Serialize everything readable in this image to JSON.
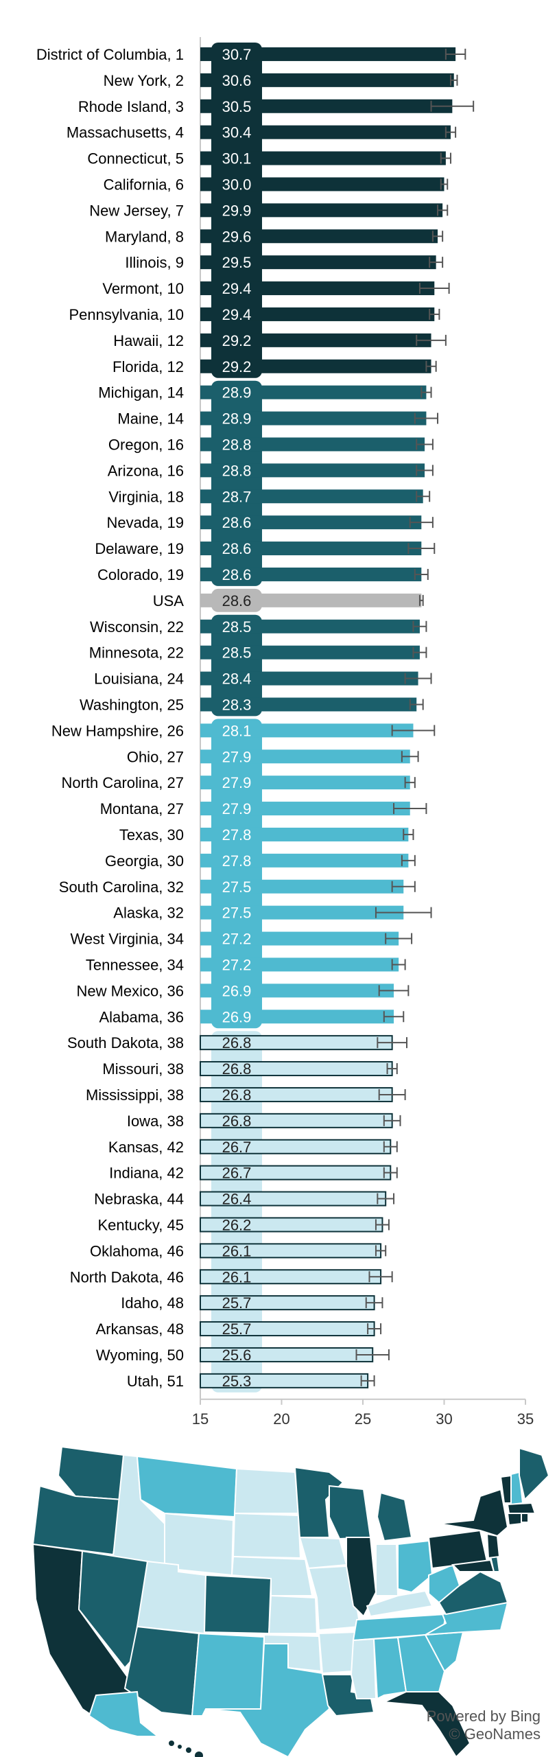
{
  "chart_data": {
    "type": "bar",
    "orientation": "horizontal",
    "title": "",
    "xlabel": "",
    "ylabel": "",
    "xlim": [
      15,
      35
    ],
    "x_ticks": [
      15,
      20,
      25,
      30,
      35
    ],
    "x_tick_labels": [
      "15",
      "20",
      "25",
      "30",
      "35"
    ],
    "categories": [
      "District of Columbia, 1",
      "New York, 2",
      "Rhode Island, 3",
      "Massachusetts, 4",
      "Connecticut, 5",
      "California, 6",
      "New Jersey, 7",
      "Maryland, 8",
      "Illinois, 9",
      "Vermont, 10",
      "Pennsylvania, 10",
      "Hawaii, 12",
      "Florida, 12",
      "Michigan, 14",
      "Maine, 14",
      "Oregon, 16",
      "Arizona, 16",
      "Virginia, 18",
      "Nevada, 19",
      "Delaware, 19",
      "Colorado, 19",
      "USA",
      "Wisconsin, 22",
      "Minnesota, 22",
      "Louisiana, 24",
      "Washington, 25",
      "New Hampshire, 26",
      "Ohio, 27",
      "North Carolina, 27",
      "Montana, 27",
      "Texas, 30",
      "Georgia, 30",
      "South Carolina, 32",
      "Alaska, 32",
      "West Virginia, 34",
      "Tennessee, 34",
      "New Mexico, 36",
      "Alabama, 36",
      "South Dakota, 38",
      "Missouri, 38",
      "Mississippi, 38",
      "Iowa, 38",
      "Kansas, 42",
      "Indiana, 42",
      "Nebraska, 44",
      "Kentucky, 45",
      "Oklahoma, 46",
      "North Dakota, 46",
      "Idaho, 48",
      "Arkansas, 48",
      "Wyoming, 50",
      "Utah, 51"
    ],
    "values": [
      30.7,
      30.6,
      30.5,
      30.4,
      30.1,
      30.0,
      29.9,
      29.6,
      29.5,
      29.4,
      29.4,
      29.2,
      29.2,
      28.9,
      28.9,
      28.8,
      28.8,
      28.7,
      28.6,
      28.6,
      28.6,
      28.6,
      28.5,
      28.5,
      28.4,
      28.3,
      28.1,
      27.9,
      27.9,
      27.9,
      27.8,
      27.8,
      27.5,
      27.5,
      27.2,
      27.2,
      26.9,
      26.9,
      26.8,
      26.8,
      26.8,
      26.8,
      26.7,
      26.7,
      26.4,
      26.2,
      26.1,
      26.1,
      25.7,
      25.7,
      25.6,
      25.3
    ],
    "value_labels": [
      "30.7",
      "30.6",
      "30.5",
      "30.4",
      "30.1",
      "30.0",
      "29.9",
      "29.6",
      "29.5",
      "29.4",
      "29.4",
      "29.2",
      "29.2",
      "28.9",
      "28.9",
      "28.8",
      "28.8",
      "28.7",
      "28.6",
      "28.6",
      "28.6",
      "28.6",
      "28.5",
      "28.5",
      "28.4",
      "28.3",
      "28.1",
      "27.9",
      "27.9",
      "27.9",
      "27.8",
      "27.8",
      "27.5",
      "27.5",
      "27.2",
      "27.2",
      "26.9",
      "26.9",
      "26.8",
      "26.8",
      "26.8",
      "26.8",
      "26.7",
      "26.7",
      "26.4",
      "26.2",
      "26.1",
      "26.1",
      "25.7",
      "25.7",
      "25.6",
      "25.3"
    ],
    "error_low": [
      30.1,
      30.4,
      29.2,
      30.1,
      29.8,
      29.8,
      29.6,
      29.3,
      29.1,
      28.5,
      29.1,
      28.3,
      28.9,
      28.6,
      28.2,
      28.3,
      28.3,
      28.3,
      27.9,
      27.8,
      28.2,
      28.5,
      28.1,
      28.1,
      27.6,
      27.9,
      26.8,
      27.4,
      27.6,
      26.9,
      27.5,
      27.4,
      26.8,
      25.8,
      26.4,
      26.8,
      26.0,
      26.3,
      25.9,
      26.5,
      26.0,
      26.3,
      26.3,
      26.3,
      25.9,
      25.8,
      25.8,
      25.4,
      25.2,
      25.3,
      24.6,
      24.9
    ],
    "error_high": [
      31.3,
      30.8,
      31.8,
      30.7,
      30.4,
      30.2,
      30.2,
      29.9,
      29.9,
      30.3,
      29.7,
      30.1,
      29.5,
      29.2,
      29.6,
      29.3,
      29.3,
      29.1,
      29.3,
      29.4,
      29.0,
      28.7,
      28.9,
      28.9,
      29.2,
      28.7,
      29.4,
      28.4,
      28.2,
      28.9,
      28.1,
      28.2,
      28.2,
      29.2,
      28.0,
      27.6,
      27.8,
      27.5,
      27.7,
      27.1,
      27.6,
      27.3,
      27.1,
      27.1,
      26.9,
      26.6,
      26.4,
      26.8,
      26.2,
      26.1,
      26.6,
      25.7
    ],
    "groups": [
      "q1",
      "q1",
      "q1",
      "q1",
      "q1",
      "q1",
      "q1",
      "q1",
      "q1",
      "q1",
      "q1",
      "q1",
      "q1",
      "q2",
      "q2",
      "q2",
      "q2",
      "q2",
      "q2",
      "q2",
      "q2",
      "usa",
      "q2",
      "q2",
      "q2",
      "q2",
      "q3",
      "q3",
      "q3",
      "q3",
      "q3",
      "q3",
      "q3",
      "q3",
      "q3",
      "q3",
      "q3",
      "q3",
      "q4",
      "q4",
      "q4",
      "q4",
      "q4",
      "q4",
      "q4",
      "q4",
      "q4",
      "q4",
      "q4",
      "q4",
      "q4",
      "q4"
    ],
    "group_colors": {
      "q1": "#0e3239",
      "q2": "#1b5f6b",
      "q3": "#4fbad0",
      "q4": "#cbe8f0",
      "usa": "#b8b8b8"
    }
  },
  "map": {
    "background_land": "#cbe8f0",
    "credit_line1": "Powered by Bing",
    "credit_line2": "© GeoNames"
  }
}
